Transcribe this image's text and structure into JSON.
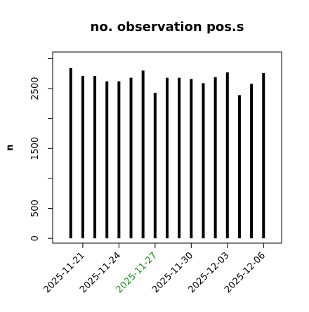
{
  "chart_data": {
    "type": "bar",
    "title": "no. observation pos.s",
    "y_label": "n",
    "x": [
      "2025-11-20",
      "2025-11-21",
      "2025-11-22",
      "2025-11-23",
      "2025-11-24",
      "2025-11-25",
      "2025-11-26",
      "2025-11-27",
      "2025-11-28",
      "2025-11-29",
      "2025-11-30",
      "2025-12-01",
      "2025-12-02",
      "2025-12-03",
      "2025-12-04",
      "2025-12-05",
      "2025-12-06"
    ],
    "values": [
      2840,
      2710,
      2710,
      2620,
      2620,
      2680,
      2800,
      2430,
      2680,
      2680,
      2660,
      2590,
      2690,
      2770,
      2390,
      2580,
      2760
    ],
    "color": "#000000",
    "xlim": [
      "2025-11-18T12:00",
      "2025-12-07T12:00"
    ],
    "xticks": [
      "2025-11-21",
      "2025-11-24",
      "2025-11-27",
      "2025-11-30",
      "2025-12-03",
      "2025-12-06"
    ],
    "highlight_tick": "2025-11-27",
    "highlight_color": "#228b22",
    "ylim": [
      -80,
      3110
    ],
    "yticks": [
      0,
      500,
      1500,
      2500
    ],
    "yminor_ticks": [
      1000,
      2000,
      3000
    ]
  }
}
